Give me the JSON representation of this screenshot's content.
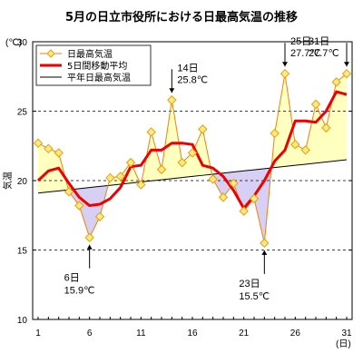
{
  "chart_data": {
    "type": "line",
    "title": "5月の日立市役所における日最高気温の推移",
    "ylabel": "気温",
    "y_unit": "(℃)",
    "x_unit": "(日)",
    "ylim": [
      10,
      30
    ],
    "xlim": [
      1,
      31
    ],
    "yticks": [
      10,
      15,
      20,
      25,
      30
    ],
    "xticks": [
      1,
      6,
      11,
      16,
      21,
      26,
      31
    ],
    "dashed_gridlines_y": [
      15,
      20,
      25
    ],
    "legend_position": "top-left",
    "x": [
      1,
      2,
      3,
      4,
      5,
      6,
      7,
      8,
      9,
      10,
      11,
      12,
      13,
      14,
      15,
      16,
      17,
      18,
      19,
      20,
      21,
      22,
      23,
      24,
      25,
      26,
      27,
      28,
      29,
      30,
      31
    ],
    "series": [
      {
        "name": "日最高気温",
        "color": "#f08010",
        "marker_color": "#ffe88a",
        "values": [
          22.7,
          22.3,
          22.0,
          19.2,
          18.2,
          15.9,
          17.4,
          20.2,
          20.3,
          21.3,
          19.7,
          23.5,
          20.8,
          25.8,
          21.3,
          22.0,
          23.7,
          20.1,
          18.8,
          19.8,
          17.8,
          18.7,
          15.5,
          23.4,
          27.7,
          22.6,
          22.2,
          25.5,
          23.8,
          27.1,
          27.7
        ]
      },
      {
        "name": "5日間移動平均",
        "color": "#ee0000",
        "values": [
          20.0,
          20.7,
          20.9,
          19.8,
          18.8,
          18.2,
          18.3,
          18.7,
          19.5,
          21.0,
          21.1,
          22.2,
          22.2,
          22.7,
          22.7,
          22.6,
          21.1,
          20.9,
          20.3,
          19.3,
          18.0,
          18.9,
          20.0,
          21.4,
          22.2,
          24.3,
          24.3,
          24.2,
          25.0,
          26.4,
          26.2
        ]
      },
      {
        "name": "平年日最高気温",
        "color": "#000000",
        "values": [
          19.1,
          19.18,
          19.26,
          19.34,
          19.42,
          19.5,
          19.58,
          19.66,
          19.74,
          19.82,
          19.9,
          19.98,
          20.06,
          20.14,
          20.22,
          20.3,
          20.38,
          20.46,
          20.54,
          20.62,
          20.7,
          20.78,
          20.86,
          20.94,
          21.02,
          21.1,
          21.18,
          21.26,
          21.34,
          21.42,
          21.5
        ]
      }
    ],
    "fill_colors": {
      "above_normal": "#ffffc0",
      "below_normal": "#d8d0f4"
    },
    "annotations": [
      {
        "day": 6,
        "date_label": "6日",
        "value_label": "15.9℃",
        "arrow": "up"
      },
      {
        "day": 14,
        "date_label": "14日",
        "value_label": "25.8℃",
        "arrow": "down"
      },
      {
        "day": 23,
        "date_label": "23日",
        "value_label": "15.5℃",
        "arrow": "up"
      },
      {
        "day": 25,
        "date_label": "25日",
        "value_label": "27.7℃",
        "arrow": "down"
      },
      {
        "day": 31,
        "date_label": "31日",
        "value_label": "27.7℃",
        "arrow": "down"
      }
    ]
  }
}
